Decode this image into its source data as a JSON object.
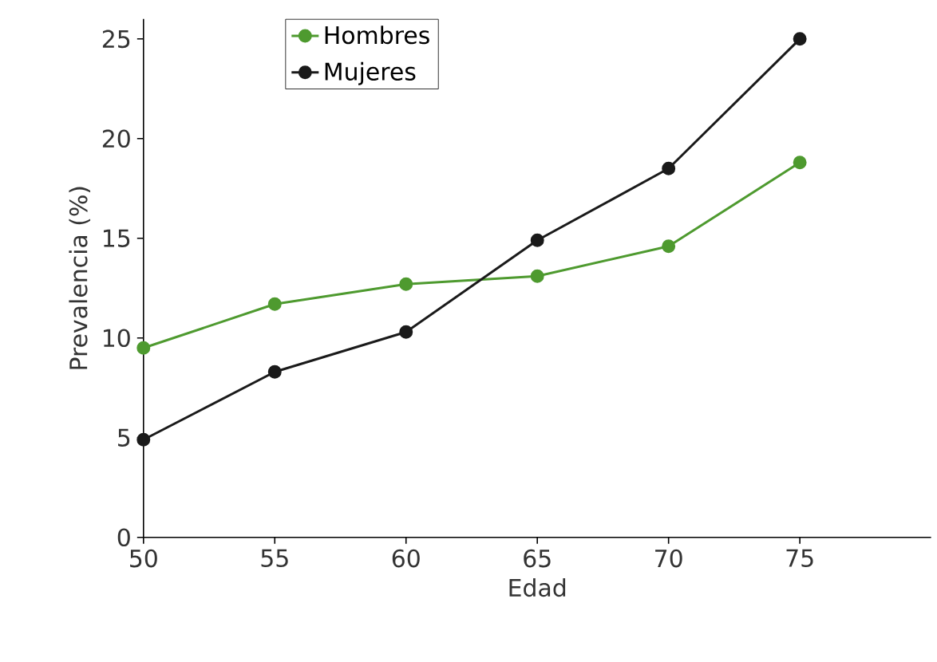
{
  "chart_data": {
    "type": "line",
    "xlabel": "Edad",
    "ylabel": "Prevalencia (%)",
    "x": [
      50,
      55,
      60,
      65,
      70,
      75
    ],
    "series": [
      {
        "name": "Hombres",
        "color": "#4e9a2f",
        "values": [
          9.5,
          11.7,
          12.7,
          13.1,
          14.6,
          18.8
        ]
      },
      {
        "name": "Mujeres",
        "color": "#1a1a1a",
        "values": [
          4.9,
          8.3,
          10.3,
          14.9,
          18.5,
          25
        ]
      }
    ],
    "xlim": [
      50,
      80
    ],
    "xticks": [
      50,
      55,
      60,
      65,
      70,
      75
    ],
    "ylim": [
      0,
      26
    ],
    "yticks": [
      0,
      5,
      10,
      15,
      20,
      25
    ],
    "grid": false,
    "legend": "top left",
    "marker": "circle",
    "line_style": "solid"
  }
}
